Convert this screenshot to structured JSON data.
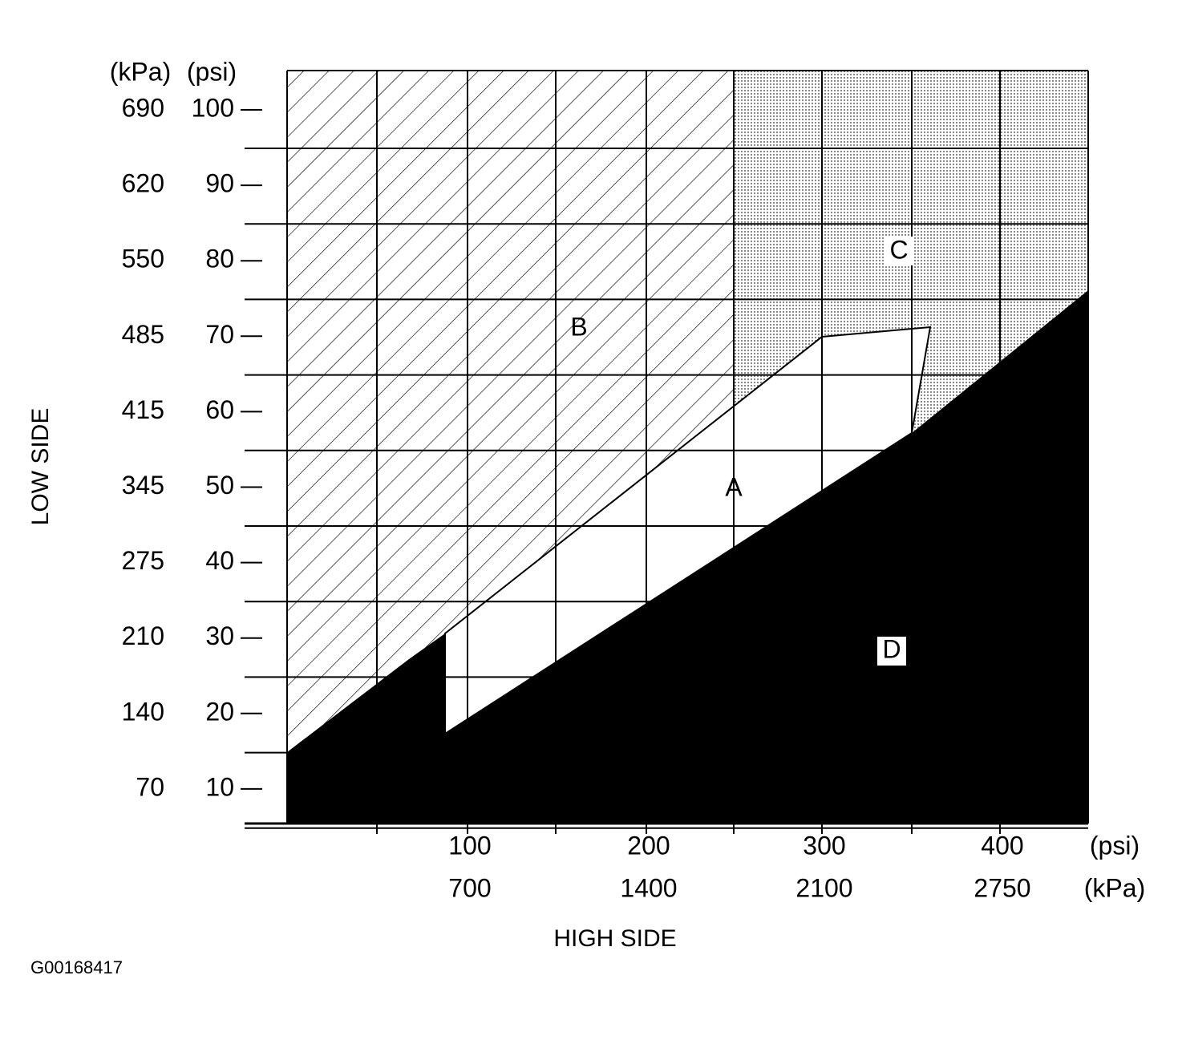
{
  "low_side": {
    "title": "LOW SIDE",
    "units": [
      "(kPa)",
      "(psi)"
    ],
    "kpa": [
      "690",
      "620",
      "550",
      "485",
      "415",
      "345",
      "275",
      "210",
      "140",
      "70"
    ],
    "psi": [
      "100",
      "90",
      "80",
      "70",
      "60",
      "50",
      "40",
      "30",
      "20",
      "10"
    ]
  },
  "high_side": {
    "title": "HIGH SIDE",
    "units": [
      "(psi)",
      "(kPa)"
    ],
    "psi": [
      "100",
      "200",
      "300",
      "400"
    ],
    "kpa": [
      "700",
      "1400",
      "2100",
      "2750"
    ]
  },
  "regions": [
    "A",
    "B",
    "C",
    "D"
  ],
  "figure_id": "G00168417"
}
